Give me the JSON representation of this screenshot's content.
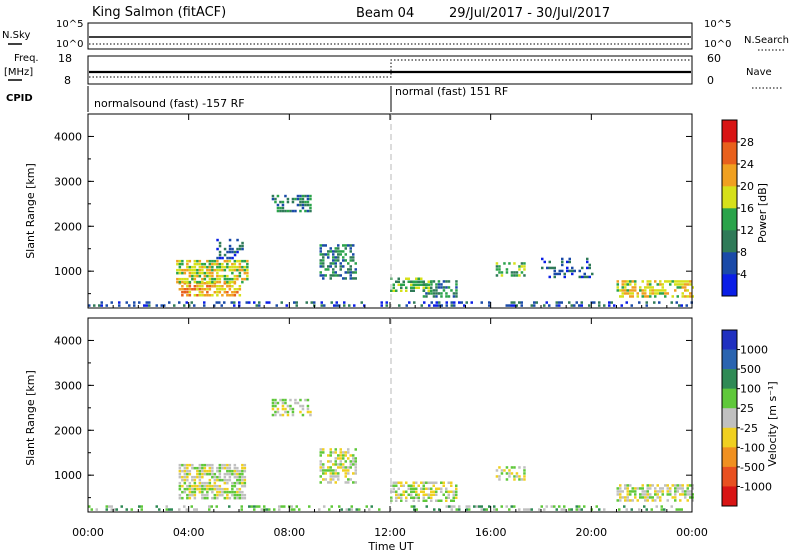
{
  "header": {
    "station": "King Salmon (fitACF)",
    "beam": "Beam 04",
    "dates": "29/Jul/2017 - 30/Jul/2017"
  },
  "strips": {
    "nsky_label": "N.Sky",
    "nsky_ticks": [
      "10^5",
      "10^0"
    ],
    "nsearch_label": "N.Search",
    "nsearch_ticks": [
      "10^5",
      "10^0"
    ],
    "freq_label_line1": "Freq.",
    "freq_label_line2": "[MHz]",
    "freq_ticks": [
      "18",
      "8"
    ],
    "nave_label": "Nave",
    "nave_ticks": [
      "60",
      "0"
    ],
    "cpid_label": "CPID",
    "cpid_segments": [
      "normalsound (fast) -157 RF",
      "normal (fast) 151 RF"
    ]
  },
  "axes": {
    "x_ticks": [
      "00:00",
      "04:00",
      "08:00",
      "12:00",
      "16:00",
      "20:00",
      "00:00"
    ],
    "xlabel": "Time UT",
    "ylabel": "Slant Range [km]",
    "y_ticks": [
      "1000",
      "2000",
      "3000",
      "4000"
    ]
  },
  "colorbars": {
    "power": {
      "label": "Power [dB]",
      "ticks": [
        "4",
        "8",
        "12",
        "16",
        "20",
        "24",
        "28"
      ],
      "colors": [
        "#0a1ee6",
        "#1a4aa8",
        "#2f7a58",
        "#2aa34a",
        "#d6e01a",
        "#f0a020",
        "#e8601c",
        "#d81414"
      ]
    },
    "velocity": {
      "label": "Velocity [m s⁻¹]",
      "ticks": [
        "1000",
        "500",
        "100",
        "25",
        "-25",
        "-100",
        "-500",
        "-1000"
      ],
      "colors": [
        "#2030c0",
        "#2a64b0",
        "#2f8a55",
        "#5fc83a",
        "#c0c0c0",
        "#f0d020",
        "#f09020",
        "#e85020",
        "#d81414"
      ]
    }
  },
  "chart_data": [
    {
      "type": "heatmap",
      "name": "power",
      "x_unit": "hours UT",
      "xlim": [
        0,
        24
      ],
      "ylim": [
        180,
        4500
      ],
      "blobs": [
        {
          "t": [
            0.0,
            24.0
          ],
          "r": [
            200,
            330
          ],
          "level": 1,
          "density": 0.35
        },
        {
          "t": [
            3.6,
            6.0
          ],
          "r": [
            480,
            760
          ],
          "level": 5,
          "density": 0.7
        },
        {
          "t": [
            3.5,
            6.3
          ],
          "r": [
            760,
            1250
          ],
          "level": 4,
          "density": 0.75
        },
        {
          "t": [
            5.0,
            6.2
          ],
          "r": [
            1280,
            1720
          ],
          "level": 1,
          "density": 0.35
        },
        {
          "t": [
            7.3,
            8.8
          ],
          "r": [
            2350,
            2700
          ],
          "level": 2,
          "density": 0.55
        },
        {
          "t": [
            9.2,
            10.6
          ],
          "r": [
            850,
            1600
          ],
          "level": 2,
          "density": 0.55
        },
        {
          "t": [
            12.0,
            13.6
          ],
          "r": [
            560,
            860
          ],
          "level": 3,
          "density": 0.6
        },
        {
          "t": [
            13.3,
            14.6
          ],
          "r": [
            430,
            800
          ],
          "level": 2,
          "density": 0.5
        },
        {
          "t": [
            16.2,
            17.3
          ],
          "r": [
            920,
            1200
          ],
          "level": 3,
          "density": 0.55
        },
        {
          "t": [
            18.0,
            20.0
          ],
          "r": [
            850,
            1300
          ],
          "level": 1,
          "density": 0.3
        },
        {
          "t": [
            21.0,
            24.0
          ],
          "r": [
            450,
            800
          ],
          "level": 4,
          "density": 0.65
        }
      ]
    },
    {
      "type": "heatmap",
      "name": "velocity",
      "x_unit": "hours UT",
      "xlim": [
        0,
        24
      ],
      "ylim": [
        180,
        4500
      ],
      "blobs": [
        {
          "t": [
            0.0,
            24.0
          ],
          "r": [
            200,
            330
          ],
          "level": 3,
          "density": 0.3
        },
        {
          "t": [
            3.6,
            6.2
          ],
          "r": [
            480,
            1250
          ],
          "level": 4,
          "density": 0.75
        },
        {
          "t": [
            7.3,
            8.8
          ],
          "r": [
            2350,
            2700
          ],
          "level": 4,
          "density": 0.6
        },
        {
          "t": [
            9.2,
            10.6
          ],
          "r": [
            850,
            1600
          ],
          "level": 4,
          "density": 0.55
        },
        {
          "t": [
            12.0,
            14.6
          ],
          "r": [
            430,
            860
          ],
          "level": 4,
          "density": 0.6
        },
        {
          "t": [
            16.2,
            17.3
          ],
          "r": [
            920,
            1200
          ],
          "level": 4,
          "density": 0.5
        },
        {
          "t": [
            21.0,
            24.0
          ],
          "r": [
            450,
            800
          ],
          "level": 4,
          "density": 0.65
        }
      ]
    }
  ]
}
